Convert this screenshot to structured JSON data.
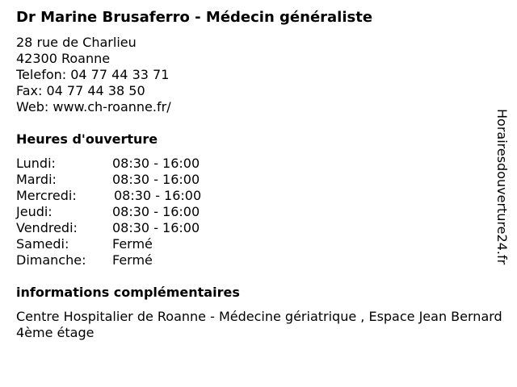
{
  "title": "Dr Marine Brusaferro - Médecin généraliste",
  "address": {
    "street": "28 rue de Charlieu",
    "city": "42300 Roanne",
    "phone": "Telefon: 04 77 44 33 71",
    "fax": "Fax: 04 77 44 38 50",
    "web": "Web: www.ch-roanne.fr/"
  },
  "hours_heading": "Heures d'ouverture",
  "hours": [
    {
      "day": "Lundi:",
      "time": "08:30 - 16:00"
    },
    {
      "day": "Mardi:",
      "time": "08:30 - 16:00"
    },
    {
      "day": "Mercredi:",
      "time": "08:30 - 16:00"
    },
    {
      "day": "Jeudi:",
      "time": "08:30 - 16:00"
    },
    {
      "day": "Vendredi:",
      "time": "08:30 - 16:00"
    },
    {
      "day": "Samedi:",
      "time": "Fermé"
    },
    {
      "day": "Dimanche:",
      "time": "Fermé"
    }
  ],
  "info_heading": "informations complémentaires",
  "info_text": "Centre Hospitalier de Roanne - Médecine gériatrique , Espace Jean Bernard 4ème étage",
  "side_brand": "Horairesdouverture24.fr"
}
